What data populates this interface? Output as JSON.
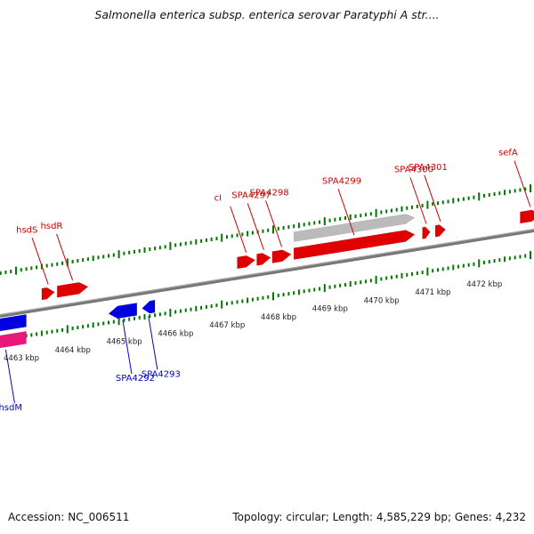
{
  "title": "Salmonella enterica subsp. enterica serovar Paratyphi A str....",
  "footer": {
    "accession": "Accession: NC_006511",
    "topology": "Topology: circular; Length: 4,585,229 bp; Genes: 4,232"
  },
  "colors": {
    "forward_strand": "#e00000",
    "reverse_strand": "#0000e0",
    "highlight_reverse": "#e8197a",
    "pseudogene": "#bbbbbb",
    "ticks": "#007700",
    "backbone": "#777777",
    "forward_label": "#cc0000",
    "reverse_label": "#0000cc"
  },
  "axis_labels": [
    {
      "text": "4463 kbp",
      "pos": 4463
    },
    {
      "text": "4464 kbp",
      "pos": 4464
    },
    {
      "text": "4465 kbp",
      "pos": 4465
    },
    {
      "text": "4466 kbp",
      "pos": 4466
    },
    {
      "text": "4467 kbp",
      "pos": 4467
    },
    {
      "text": "4468 kbp",
      "pos": 4468
    },
    {
      "text": "4469 kbp",
      "pos": 4469
    },
    {
      "text": "4470 kbp",
      "pos": 4470
    },
    {
      "text": "4471 kbp",
      "pos": 4471
    },
    {
      "text": "4472 kbp",
      "pos": 4472
    }
  ],
  "features": [
    {
      "id": "hsdM",
      "label": "hsdM",
      "strand": "reverse",
      "start": 4462.4,
      "end": 4463.2,
      "color": "#e8197a"
    },
    {
      "id": "hsdM-partner",
      "label": "",
      "strand": "reverse",
      "start": 4462.4,
      "end": 4463.2,
      "color": "#0000e0"
    },
    {
      "id": "hsdS",
      "label": "hsdS",
      "strand": "forward",
      "start": 4463.5,
      "end": 4463.75,
      "color": "#e00000"
    },
    {
      "id": "hsdR",
      "label": "hsdR",
      "strand": "forward",
      "start": 4463.8,
      "end": 4464.4,
      "color": "#e00000"
    },
    {
      "id": "SPA4292",
      "label": "SPA4292",
      "strand": "reverse",
      "start": 4464.8,
      "end": 4465.35,
      "color": "#0000e0"
    },
    {
      "id": "SPA4293",
      "label": "SPA4293",
      "strand": "reverse",
      "start": 4465.45,
      "end": 4465.7,
      "color": "#0000e0"
    },
    {
      "id": "cI",
      "label": "cI",
      "strand": "forward",
      "start": 4467.3,
      "end": 4467.65,
      "color": "#e00000"
    },
    {
      "id": "SPA4297",
      "label": "SPA4297",
      "strand": "forward",
      "start": 4467.68,
      "end": 4467.95,
      "color": "#e00000"
    },
    {
      "id": "SPA4298",
      "label": "SPA4298",
      "strand": "forward",
      "start": 4467.98,
      "end": 4468.35,
      "color": "#e00000"
    },
    {
      "id": "SPA4299",
      "label": "SPA4299",
      "strand": "forward",
      "start": 4468.4,
      "end": 4470.75,
      "color": "#e00000"
    },
    {
      "id": "SPA4299-pseudo",
      "label": "",
      "strand": "forward-outer",
      "start": 4468.4,
      "end": 4470.75,
      "color": "#bbbbbb"
    },
    {
      "id": "SPA4300",
      "label": "SPA4300",
      "strand": "forward",
      "start": 4470.9,
      "end": 4471.05,
      "color": "#e00000"
    },
    {
      "id": "SPA4301",
      "label": "SPA4301",
      "strand": "forward",
      "start": 4471.15,
      "end": 4471.35,
      "color": "#e00000"
    },
    {
      "id": "sefA",
      "label": "sefA",
      "strand": "forward",
      "start": 4472.8,
      "end": 4473.2,
      "color": "#e00000"
    }
  ]
}
